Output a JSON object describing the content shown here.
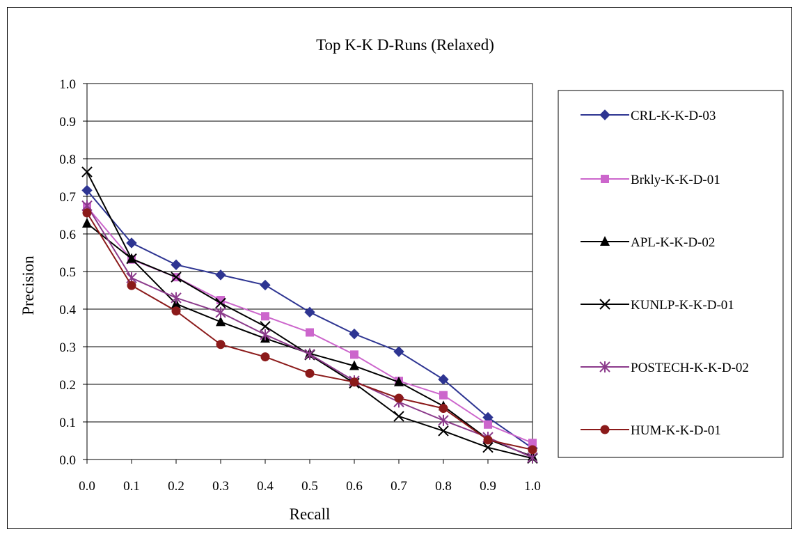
{
  "chart_data": {
    "type": "line",
    "title": "Top K-K D-Runs (Relaxed)",
    "xlabel": "Recall",
    "ylabel": "Precision",
    "xlim": [
      0.0,
      1.0
    ],
    "ylim": [
      0.0,
      1.0
    ],
    "grid": "horizontal",
    "legend_position": "right",
    "x": [
      0.0,
      0.1,
      0.2,
      0.3,
      0.4,
      0.5,
      0.6,
      0.7,
      0.8,
      0.9,
      1.0
    ],
    "x_tick_labels": [
      "0.0",
      "0.1",
      "0.2",
      "0.3",
      "0.4",
      "0.5",
      "0.6",
      "0.7",
      "0.8",
      "0.9",
      "1.0"
    ],
    "y_ticks": [
      0.0,
      0.1,
      0.2,
      0.3,
      0.4,
      0.5,
      0.6,
      0.7,
      0.8,
      0.9,
      1.0
    ],
    "y_tick_labels": [
      "0.0",
      "0.1",
      "0.2",
      "0.3",
      "0.4",
      "0.5",
      "0.6",
      "0.7",
      "0.8",
      "0.9",
      "1.0"
    ],
    "series": [
      {
        "name": "CRL-K-K-D-03",
        "color": "#2E3592",
        "marker": "diamond",
        "values": [
          0.716,
          0.576,
          0.518,
          0.491,
          0.464,
          0.392,
          0.334,
          0.287,
          0.213,
          0.112,
          0.03
        ]
      },
      {
        "name": "Brkly-K-K-D-01",
        "color": "#CC66CC",
        "marker": "square",
        "values": [
          0.672,
          0.532,
          0.485,
          0.424,
          0.381,
          0.338,
          0.279,
          0.209,
          0.171,
          0.093,
          0.044
        ]
      },
      {
        "name": "APL-K-K-D-02",
        "color": "#000000",
        "marker": "triangle",
        "values": [
          0.628,
          0.534,
          0.414,
          0.366,
          0.322,
          0.282,
          0.249,
          0.206,
          0.142,
          0.054,
          0.008
        ]
      },
      {
        "name": "KUNLP-K-K-D-01",
        "color": "#000000",
        "marker": "x",
        "values": [
          0.765,
          0.534,
          0.485,
          0.416,
          0.354,
          0.278,
          0.203,
          0.115,
          0.076,
          0.032,
          0.003
        ]
      },
      {
        "name": "POSTECH-K-K-D-02",
        "color": "#8B3A8B",
        "marker": "asterisk",
        "values": [
          0.675,
          0.483,
          0.43,
          0.391,
          0.332,
          0.28,
          0.209,
          0.153,
          0.104,
          0.059,
          0.005
        ]
      },
      {
        "name": "HUM-K-K-D-01",
        "color": "#8B1A1A",
        "marker": "circle",
        "values": [
          0.656,
          0.463,
          0.395,
          0.306,
          0.273,
          0.229,
          0.206,
          0.163,
          0.136,
          0.052,
          0.026
        ]
      }
    ]
  }
}
